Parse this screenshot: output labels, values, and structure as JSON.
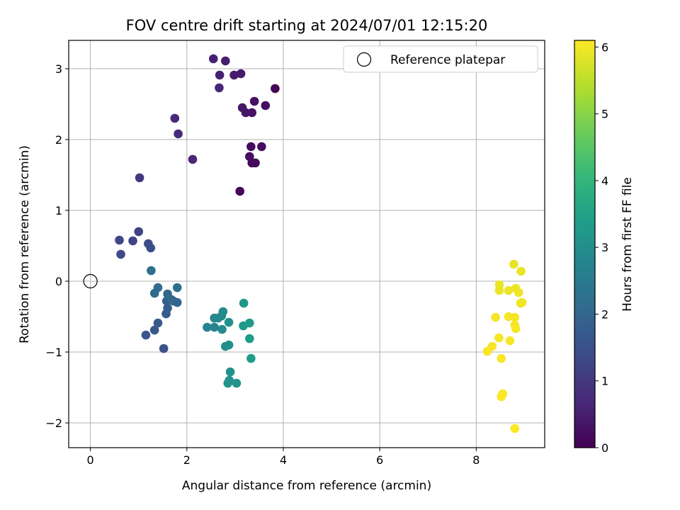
{
  "chart_data": {
    "type": "scatter",
    "title": "FOV centre drift starting at 2024/07/01 12:15:20",
    "xlabel": "Angular distance from reference (arcmin)",
    "ylabel": "Rotation from reference (arcmin)",
    "xlim": [
      -0.45,
      9.42
    ],
    "ylim": [
      -2.35,
      3.4
    ],
    "x_ticks": [
      0,
      2,
      4,
      6,
      8
    ],
    "y_ticks": [
      -2,
      -1,
      0,
      1,
      2,
      3
    ],
    "grid": true,
    "legend": {
      "placement": "top-right",
      "entries": [
        "Reference platepar"
      ]
    },
    "colorbar": {
      "label": "Hours from first FF file",
      "colormap": "viridis",
      "range": [
        0,
        6.1
      ],
      "ticks": [
        0,
        1,
        2,
        3,
        4,
        5,
        6
      ]
    },
    "reference_point": {
      "name": "Reference platepar",
      "x": 0,
      "y": 0
    },
    "series": [
      {
        "points": [
          {
            "x": 3.83,
            "y": 2.72,
            "c": 0.05
          },
          {
            "x": 3.1,
            "y": 1.27,
            "c": 0.08
          },
          {
            "x": 3.35,
            "y": 1.67,
            "c": 0.12
          },
          {
            "x": 3.42,
            "y": 1.67,
            "c": 0.15
          },
          {
            "x": 3.33,
            "y": 1.9,
            "c": 0.18
          },
          {
            "x": 3.55,
            "y": 1.9,
            "c": 0.2
          },
          {
            "x": 3.3,
            "y": 1.76,
            "c": 0.22
          },
          {
            "x": 3.63,
            "y": 2.48,
            "c": 0.25
          },
          {
            "x": 3.4,
            "y": 2.54,
            "c": 0.28
          },
          {
            "x": 3.35,
            "y": 2.38,
            "c": 0.32
          },
          {
            "x": 3.22,
            "y": 2.38,
            "c": 0.35
          },
          {
            "x": 3.15,
            "y": 2.45,
            "c": 0.38
          },
          {
            "x": 3.12,
            "y": 2.93,
            "c": 0.42
          },
          {
            "x": 2.98,
            "y": 2.91,
            "c": 0.46
          },
          {
            "x": 2.8,
            "y": 3.11,
            "c": 0.5
          },
          {
            "x": 2.55,
            "y": 3.14,
            "c": 0.55
          },
          {
            "x": 2.68,
            "y": 2.91,
            "c": 0.58
          },
          {
            "x": 2.67,
            "y": 2.73,
            "c": 0.62
          },
          {
            "x": 2.12,
            "y": 1.72,
            "c": 0.66
          },
          {
            "x": 1.75,
            "y": 2.3,
            "c": 0.7
          },
          {
            "x": 1.82,
            "y": 2.08,
            "c": 0.72
          },
          {
            "x": 1.02,
            "y": 1.46,
            "c": 0.95
          },
          {
            "x": 1.0,
            "y": 0.7,
            "c": 1.2
          },
          {
            "x": 0.88,
            "y": 0.57,
            "c": 1.25
          },
          {
            "x": 0.6,
            "y": 0.58,
            "c": 1.3
          },
          {
            "x": 0.63,
            "y": 0.38,
            "c": 1.35
          },
          {
            "x": 1.2,
            "y": 0.53,
            "c": 1.4
          },
          {
            "x": 1.25,
            "y": 0.47,
            "c": 1.45
          },
          {
            "x": 1.52,
            "y": -0.95,
            "c": 1.55
          },
          {
            "x": 1.15,
            "y": -0.76,
            "c": 1.6
          },
          {
            "x": 1.33,
            "y": -0.69,
            "c": 1.65
          },
          {
            "x": 1.4,
            "y": -0.59,
            "c": 1.7
          },
          {
            "x": 1.57,
            "y": -0.46,
            "c": 1.75
          },
          {
            "x": 1.6,
            "y": -0.38,
            "c": 1.8
          },
          {
            "x": 1.58,
            "y": -0.28,
            "c": 1.85
          },
          {
            "x": 1.72,
            "y": -0.28,
            "c": 1.9
          },
          {
            "x": 1.8,
            "y": -0.3,
            "c": 1.95
          },
          {
            "x": 1.68,
            "y": -0.26,
            "c": 2.0
          },
          {
            "x": 1.6,
            "y": -0.18,
            "c": 2.05
          },
          {
            "x": 1.33,
            "y": -0.17,
            "c": 2.1
          },
          {
            "x": 1.4,
            "y": -0.09,
            "c": 2.15
          },
          {
            "x": 1.8,
            "y": -0.09,
            "c": 2.2
          },
          {
            "x": 1.26,
            "y": 0.15,
            "c": 2.25
          },
          {
            "x": 2.42,
            "y": -0.65,
            "c": 2.7
          },
          {
            "x": 2.57,
            "y": -0.65,
            "c": 2.75
          },
          {
            "x": 2.57,
            "y": -0.52,
            "c": 2.8
          },
          {
            "x": 2.65,
            "y": -0.52,
            "c": 2.85
          },
          {
            "x": 2.75,
            "y": -0.43,
            "c": 2.9
          },
          {
            "x": 2.72,
            "y": -0.49,
            "c": 2.92
          },
          {
            "x": 2.73,
            "y": -0.68,
            "c": 2.95
          },
          {
            "x": 2.8,
            "y": -0.92,
            "c": 3.0
          },
          {
            "x": 2.87,
            "y": -0.9,
            "c": 3.02
          },
          {
            "x": 2.87,
            "y": -0.58,
            "c": 3.05
          },
          {
            "x": 2.9,
            "y": -1.28,
            "c": 3.08
          },
          {
            "x": 2.88,
            "y": -1.4,
            "c": 3.1
          },
          {
            "x": 2.85,
            "y": -1.44,
            "c": 3.12
          },
          {
            "x": 3.03,
            "y": -1.44,
            "c": 3.15
          },
          {
            "x": 3.18,
            "y": -0.31,
            "c": 3.2
          },
          {
            "x": 3.17,
            "y": -0.63,
            "c": 3.25
          },
          {
            "x": 3.3,
            "y": -0.59,
            "c": 3.3
          },
          {
            "x": 3.3,
            "y": -0.81,
            "c": 3.35
          },
          {
            "x": 3.33,
            "y": -1.09,
            "c": 3.4
          },
          {
            "x": 8.78,
            "y": 0.24,
            "c": 5.9
          },
          {
            "x": 8.93,
            "y": 0.14,
            "c": 5.92
          },
          {
            "x": 8.48,
            "y": -0.05,
            "c": 5.93
          },
          {
            "x": 8.48,
            "y": -0.13,
            "c": 5.94
          },
          {
            "x": 8.67,
            "y": -0.13,
            "c": 5.95
          },
          {
            "x": 8.82,
            "y": -0.1,
            "c": 5.96
          },
          {
            "x": 8.88,
            "y": -0.16,
            "c": 5.97
          },
          {
            "x": 8.92,
            "y": -0.31,
            "c": 5.98
          },
          {
            "x": 8.95,
            "y": -0.3,
            "c": 5.99
          },
          {
            "x": 8.4,
            "y": -0.51,
            "c": 6.0
          },
          {
            "x": 8.67,
            "y": -0.5,
            "c": 6.0
          },
          {
            "x": 8.8,
            "y": -0.51,
            "c": 6.01
          },
          {
            "x": 8.8,
            "y": -0.62,
            "c": 6.02
          },
          {
            "x": 8.82,
            "y": -0.67,
            "c": 6.03
          },
          {
            "x": 8.47,
            "y": -0.8,
            "c": 6.03
          },
          {
            "x": 8.7,
            "y": -0.84,
            "c": 6.04
          },
          {
            "x": 8.33,
            "y": -0.92,
            "c": 6.05
          },
          {
            "x": 8.23,
            "y": -0.99,
            "c": 6.05
          },
          {
            "x": 8.52,
            "y": -1.09,
            "c": 6.06
          },
          {
            "x": 8.55,
            "y": -1.59,
            "c": 6.07
          },
          {
            "x": 8.52,
            "y": -1.63,
            "c": 6.08
          },
          {
            "x": 8.8,
            "y": -2.08,
            "c": 6.09
          }
        ]
      }
    ]
  }
}
